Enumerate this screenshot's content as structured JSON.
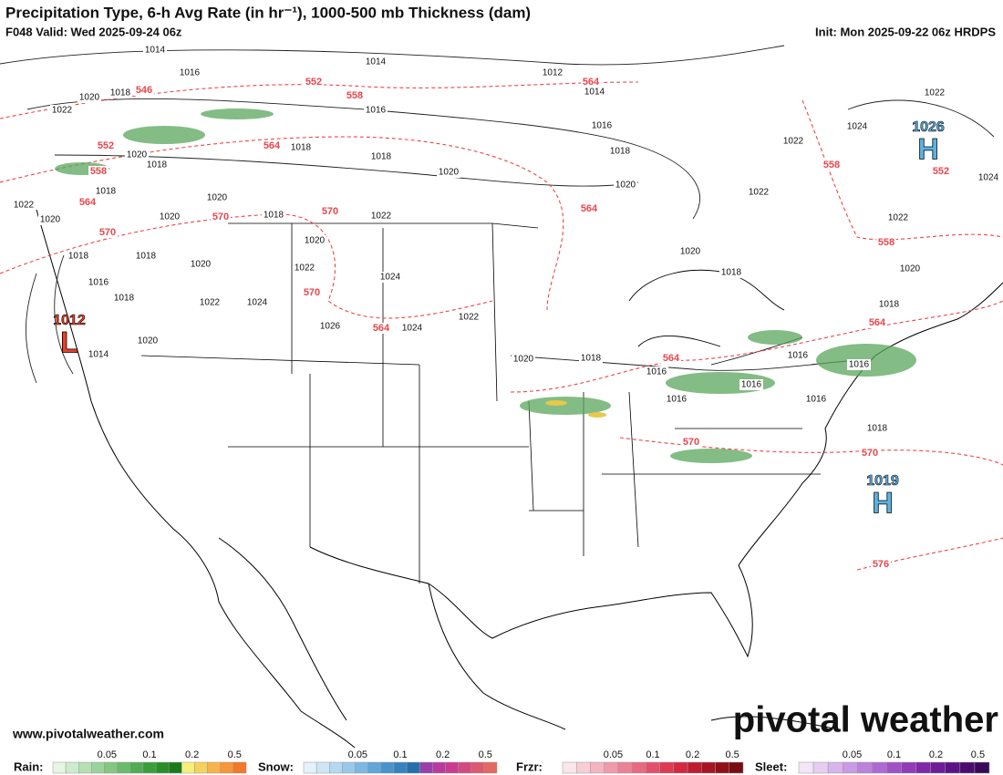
{
  "header": {
    "title": "Precipitation Type, 6-h Avg Rate (in hr⁻¹), 1000-500 mb Thickness (dam)",
    "valid": "F048 Valid: Wed 2025-09-24 06z",
    "init": "Init: Mon 2025-09-22 06z HRDPS"
  },
  "footer": {
    "url": "www.pivotalweather.com",
    "brand": "pivotal weather"
  },
  "pressure_centers": [
    {
      "value": 1012,
      "label": "L",
      "color": "#e8402a"
    },
    {
      "value": 1026,
      "label": "H",
      "color": "#5ab4e6"
    },
    {
      "value": 1019,
      "label": "H",
      "color": "#5ab4e6"
    }
  ],
  "isobar_labels": [
    1014,
    1016,
    1014,
    1012,
    1014,
    1016,
    1018,
    1020,
    1022,
    1024,
    1022,
    1022,
    1022,
    1024,
    1020,
    1018,
    1018,
    1020,
    1020,
    1018,
    1022,
    1020,
    1018,
    1018,
    1020,
    1020,
    1022,
    1020,
    1018,
    1022,
    1018,
    1018,
    1020,
    1016,
    1018,
    1018,
    1020,
    1020,
    1022,
    1024,
    1016,
    1018,
    1022,
    1024,
    1026,
    1024,
    1022,
    1020,
    1018,
    1016,
    1016,
    1016,
    1016,
    1016,
    1016,
    1018,
    1014,
    1020
  ],
  "thickness_labels": [
    546,
    552,
    558,
    552,
    558,
    564,
    570,
    570,
    564,
    570,
    570,
    564,
    564,
    564,
    564,
    570,
    558,
    552,
    558,
    564,
    570,
    576
  ],
  "legend": [
    {
      "name": "Rain:",
      "ticks": [
        0.05,
        0.1,
        0.2,
        0.5
      ],
      "colors": [
        "#e6f5e6",
        "#cdebcd",
        "#b4e0b4",
        "#9bd49b",
        "#82c882",
        "#69bb69",
        "#50ae50",
        "#3a9f3a",
        "#288f28",
        "#1a7a1a",
        "#f4f07a",
        "#f6d25a",
        "#f8b44a",
        "#f8963a",
        "#f4782a"
      ]
    },
    {
      "name": "Snow:",
      "ticks": [
        0.05,
        0.1,
        0.2,
        0.5
      ],
      "colors": [
        "#e6f2fa",
        "#cfe6f6",
        "#b4d8f0",
        "#98c9ea",
        "#7cb8e2",
        "#60a6d8",
        "#4894cc",
        "#3482be",
        "#2270ae",
        "#9a3fa8",
        "#b83aa0",
        "#cc3a90",
        "#d44a80",
        "#dc5a70",
        "#e46a60"
      ]
    },
    {
      "name": "Frzr:",
      "ticks": [
        0.05,
        0.1,
        0.2,
        0.5
      ],
      "colors": [
        "#fbe6ea",
        "#f8cdd6",
        "#f4b4c2",
        "#f09aac",
        "#ec8296",
        "#e86a80",
        "#e4506a",
        "#de3a54",
        "#d42840",
        "#c01c30",
        "#a81424",
        "#901018",
        "#780c12"
      ]
    },
    {
      "name": "Sleet:",
      "ticks": [
        0.05,
        0.1,
        0.2,
        0.5
      ],
      "colors": [
        "#f2e6f8",
        "#e6cdf2",
        "#d8b4ec",
        "#ca9ae4",
        "#bc82dc",
        "#ae6ad2",
        "#a052c6",
        "#923aba",
        "#8028aa",
        "#6e1c98",
        "#5c1284",
        "#4a0c6e",
        "#3a0858"
      ]
    }
  ]
}
